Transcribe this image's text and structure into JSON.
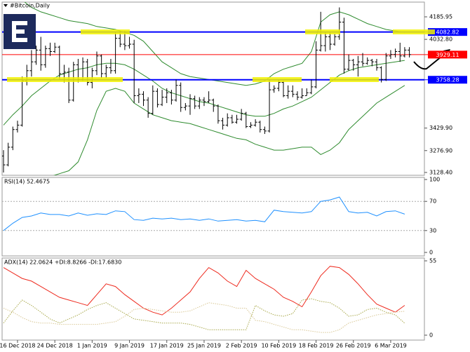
{
  "chart_data": [
    {
      "type": "candlestick",
      "title": "#Bitcoin,Daily",
      "color": "#000000",
      "x": [
        "13 Dec 2018",
        "14 Dec 2018",
        "15 Dec 2018",
        "16 Dec 2018",
        "17 Dec 2018",
        "18 Dec 2018",
        "19 Dec 2018",
        "20 Dec 2018",
        "21 Dec 2018",
        "22 Dec 2018",
        "23 Dec 2018",
        "24 Dec 2018",
        "25 Dec 2018",
        "26 Dec 2018",
        "27 Dec 2018",
        "28 Dec 2018",
        "29 Dec 2018",
        "30 Dec 2018",
        "31 Dec 2018",
        "1 Jan 2019",
        "2 Jan 2019",
        "3 Jan 2019",
        "4 Jan 2019",
        "5 Jan 2019",
        "6 Jan 2019",
        "7 Jan 2019",
        "8 Jan 2019",
        "9 Jan 2019",
        "10 Jan 2019",
        "11 Jan 2019",
        "12 Jan 2019",
        "13 Jan 2019",
        "14 Jan 2019",
        "15 Jan 2019",
        "16 Jan 2019",
        "17 Jan 2019",
        "18 Jan 2019",
        "19 Jan 2019",
        "20 Jan 2019",
        "21 Jan 2019",
        "22 Jan 2019",
        "23 Jan 2019",
        "24 Jan 2019",
        "25 Jan 2019",
        "26 Jan 2019",
        "27 Jan 2019",
        "28 Jan 2019",
        "29 Jan 2019",
        "30 Jan 2019",
        "31 Jan 2019",
        "1 Feb 2019",
        "2 Feb 2019",
        "3 Feb 2019",
        "4 Feb 2019",
        "5 Feb 2019",
        "6 Feb 2019",
        "7 Feb 2019",
        "8 Feb 2019",
        "9 Feb 2019",
        "10 Feb 2019",
        "11 Feb 2019",
        "12 Feb 2019",
        "13 Feb 2019",
        "14 Feb 2019",
        "15 Feb 2019",
        "16 Feb 2019",
        "17 Feb 2019",
        "18 Feb 2019",
        "19 Feb 2019",
        "20 Feb 2019",
        "21 Feb 2019",
        "22 Feb 2019",
        "23 Feb 2019",
        "24 Feb 2019",
        "25 Feb 2019",
        "26 Feb 2019",
        "27 Feb 2019",
        "28 Feb 2019",
        "1 Mar 2019",
        "2 Mar 2019",
        "3 Mar 2019",
        "4 Mar 2019",
        "5 Mar 2019",
        "6 Mar 2019",
        "7 Mar 2019",
        "8 Mar 2019",
        "9 Mar 2019",
        "10 Mar 2019"
      ],
      "open": [
        3240,
        3180,
        3300,
        3420,
        3450,
        3750,
        3820,
        3880,
        3960,
        3860,
        3970,
        3950,
        3980,
        3800,
        3810,
        3620,
        3860,
        3760,
        3880,
        3740,
        3820,
        3920,
        3800,
        3840,
        3820,
        4040,
        4000,
        3990,
        4000,
        3650,
        3660,
        3620,
        3530,
        3680,
        3590,
        3640,
        3670,
        3620,
        3720,
        3570,
        3580,
        3630,
        3580,
        3620,
        3610,
        3620,
        3580,
        3480,
        3450,
        3500,
        3470,
        3490,
        3530,
        3440,
        3450,
        3470,
        3420,
        3410,
        3690,
        3700,
        3740,
        3650,
        3680,
        3660,
        3640,
        3650,
        3670,
        3710,
        3960,
        3990,
        4050,
        4000,
        4050,
        4150,
        3830,
        3890,
        3860,
        3880,
        3870,
        3890,
        3880,
        3840,
        3760,
        3920,
        3930,
        3950,
        3920,
        3960
      ],
      "high": [
        3280,
        3330,
        3440,
        3480,
        3780,
        3860,
        3960,
        3990,
        4050,
        3990,
        4010,
        4010,
        3990,
        3860,
        3840,
        3880,
        3900,
        3910,
        3900,
        3840,
        3950,
        3930,
        3860,
        3900,
        4080,
        4090,
        4090,
        4050,
        4030,
        3700,
        3680,
        3640,
        3720,
        3700,
        3690,
        3700,
        3690,
        3760,
        3740,
        3600,
        3660,
        3650,
        3640,
        3640,
        3680,
        3630,
        3590,
        3500,
        3530,
        3520,
        3520,
        3560,
        3540,
        3470,
        3490,
        3480,
        3440,
        3760,
        3720,
        3760,
        3750,
        3720,
        3720,
        3680,
        3700,
        3700,
        3760,
        4020,
        4220,
        4080,
        4080,
        4070,
        4250,
        4180,
        3930,
        3900,
        3920,
        3940,
        3910,
        3900,
        3900,
        3850,
        3940,
        3960,
        3970,
        4010,
        3980,
        3980
      ],
      "low": [
        3128,
        3170,
        3280,
        3400,
        3440,
        3720,
        3780,
        3860,
        3820,
        3840,
        3920,
        3940,
        3760,
        3740,
        3600,
        3610,
        3740,
        3750,
        3720,
        3700,
        3790,
        3770,
        3770,
        3800,
        3800,
        3980,
        3960,
        3970,
        3600,
        3600,
        3580,
        3500,
        3520,
        3570,
        3580,
        3600,
        3590,
        3610,
        3540,
        3550,
        3520,
        3560,
        3560,
        3580,
        3600,
        3540,
        3460,
        3420,
        3440,
        3460,
        3460,
        3480,
        3430,
        3430,
        3440,
        3400,
        3390,
        3400,
        3670,
        3680,
        3640,
        3630,
        3640,
        3620,
        3630,
        3650,
        3660,
        3700,
        3950,
        3950,
        3960,
        3990,
        4030,
        3800,
        3820,
        3820,
        3780,
        3850,
        3860,
        3850,
        3820,
        3740,
        3750,
        3900,
        3910,
        3880,
        3910,
        3910
      ],
      "close": [
        3180,
        3300,
        3420,
        3450,
        3750,
        3820,
        3880,
        3960,
        3860,
        3970,
        3950,
        3980,
        3800,
        3810,
        3620,
        3860,
        3760,
        3880,
        3740,
        3820,
        3920,
        3800,
        3840,
        3820,
        4040,
        4000,
        3990,
        4000,
        3650,
        3660,
        3620,
        3530,
        3680,
        3590,
        3640,
        3670,
        3620,
        3720,
        3570,
        3580,
        3630,
        3580,
        3620,
        3610,
        3620,
        3580,
        3480,
        3450,
        3500,
        3470,
        3490,
        3530,
        3440,
        3450,
        3470,
        3420,
        3410,
        3690,
        3700,
        3740,
        3650,
        3680,
        3660,
        3640,
        3650,
        3670,
        3710,
        3960,
        3990,
        4050,
        4000,
        4050,
        4150,
        3830,
        3890,
        3860,
        3880,
        3870,
        3890,
        3880,
        3840,
        3760,
        3920,
        3930,
        3950,
        3920,
        3960,
        3929.11
      ],
      "bands": {
        "color": "#2e8b2e",
        "x": [
          "13 Dec 2018",
          "15 Dec 2018",
          "17 Dec 2018",
          "19 Dec 2018",
          "21 Dec 2018",
          "23 Dec 2018",
          "25 Dec 2018",
          "27 Dec 2018",
          "29 Dec 2018",
          "31 Dec 2018",
          "2 Jan 2019",
          "4 Jan 2019",
          "6 Jan 2019",
          "8 Jan 2019",
          "10 Jan 2019",
          "12 Jan 2019",
          "14 Jan 2019",
          "16 Jan 2019",
          "18 Jan 2019",
          "20 Jan 2019",
          "22 Jan 2019",
          "24 Jan 2019",
          "26 Jan 2019",
          "28 Jan 2019",
          "30 Jan 2019",
          "1 Feb 2019",
          "3 Feb 2019",
          "5 Feb 2019",
          "7 Feb 2019",
          "9 Feb 2019",
          "11 Feb 2019",
          "13 Feb 2019",
          "15 Feb 2019",
          "17 Feb 2019",
          "19 Feb 2019",
          "21 Feb 2019",
          "23 Feb 2019",
          "25 Feb 2019",
          "27 Feb 2019",
          "1 Mar 2019",
          "3 Mar 2019",
          "5 Mar 2019",
          "7 Mar 2019",
          "9 Mar 2019"
        ],
        "series": [
          {
            "values": [
              4400,
              4350,
              4300,
              4250,
              4220,
              4200,
              4180,
              4160,
              4150,
              4140,
              4120,
              4110,
              4100,
              4080,
              4060,
              4020,
              3950,
              3880,
              3840,
              3800,
              3780,
              3770,
              3760,
              3750,
              3740,
              3730,
              3720,
              3730,
              3750,
              3800,
              3830,
              3850,
              3870,
              3950,
              4150,
              4200,
              4220,
              4200,
              4170,
              4140,
              4120,
              4100,
              4090,
              4080
            ]
          },
          {
            "values": [
              3450,
              3520,
              3580,
              3650,
              3700,
              3750,
              3790,
              3810,
              3830,
              3840,
              3860,
              3870,
              3870,
              3860,
              3830,
              3790,
              3750,
              3700,
              3670,
              3650,
              3630,
              3610,
              3600,
              3580,
              3560,
              3540,
              3520,
              3510,
              3510,
              3530,
              3560,
              3580,
              3610,
              3640,
              3690,
              3740,
              3790,
              3820,
              3840,
              3850,
              3860,
              3870,
              3880,
              3890
            ]
          },
          {
            "values": [
              2500,
              2700,
              2860,
              3000,
              3050,
              3100,
              3120,
              3140,
              3200,
              3350,
              3550,
              3680,
              3700,
              3680,
              3600,
              3560,
              3520,
              3500,
              3480,
              3470,
              3460,
              3440,
              3420,
              3400,
              3380,
              3360,
              3350,
              3320,
              3300,
              3280,
              3280,
              3290,
              3300,
              3300,
              3250,
              3280,
              3330,
              3420,
              3480,
              3540,
              3600,
              3640,
              3680,
              3720
            ]
          }
        ]
      },
      "levels": [
        {
          "value": 4082.82,
          "color": "#0000ff"
        },
        {
          "value": 3929.11,
          "color": "#ff0000"
        },
        {
          "value": 3758.28,
          "color": "#0000ff"
        }
      ],
      "ylim": [
        3109,
        4286
      ],
      "yticks": [
        4185.95,
        {
          "value": 4032.8,
          "label": "4032.80"
        },
        {
          "value": 3429.9,
          "label": "3429.90"
        },
        {
          "value": 3276.9,
          "label": "3276.90"
        },
        {
          "value": 3128.4,
          "label": "3128.40"
        }
      ],
      "xticks": [
        "16 Dec 2018",
        "24 Dec 2018",
        "1 Jan 2019",
        "9 Jan 2019",
        "17 Jan 2019",
        "25 Jan 2019",
        "2 Feb 2019",
        "10 Feb 2019",
        "18 Feb 2019",
        "26 Feb 2019",
        "6 Mar 2019"
      ]
    },
    {
      "type": "line",
      "title": "RSI(14) 52.4675",
      "x": [
        "13 Dec 2018",
        "15 Dec 2018",
        "17 Dec 2018",
        "19 Dec 2018",
        "21 Dec 2018",
        "23 Dec 2018",
        "25 Dec 2018",
        "27 Dec 2018",
        "29 Dec 2018",
        "31 Dec 2018",
        "2 Jan 2019",
        "4 Jan 2019",
        "6 Jan 2019",
        "8 Jan 2019",
        "10 Jan 2019",
        "12 Jan 2019",
        "14 Jan 2019",
        "16 Jan 2019",
        "18 Jan 2019",
        "20 Jan 2019",
        "22 Jan 2019",
        "24 Jan 2019",
        "26 Jan 2019",
        "28 Jan 2019",
        "30 Jan 2019",
        "1 Feb 2019",
        "3 Feb 2019",
        "5 Feb 2019",
        "7 Feb 2019",
        "9 Feb 2019",
        "11 Feb 2019",
        "13 Feb 2019",
        "15 Feb 2019",
        "17 Feb 2019",
        "19 Feb 2019",
        "21 Feb 2019",
        "23 Feb 2019",
        "25 Feb 2019",
        "27 Feb 2019",
        "1 Mar 2019",
        "3 Mar 2019",
        "5 Mar 2019",
        "7 Mar 2019",
        "9 Mar 2019"
      ],
      "series": [
        {
          "color": "#1e90ff",
          "values": [
            30,
            40,
            48,
            50,
            54,
            52,
            52,
            50,
            54,
            51,
            53,
            52,
            57,
            56,
            45,
            44,
            47,
            46,
            47,
            45,
            46,
            44,
            46,
            43,
            44,
            45,
            43,
            44,
            42,
            58,
            56,
            55,
            54,
            56,
            70,
            72,
            76,
            56,
            54,
            55,
            50,
            56,
            57,
            52.4675
          ]
        }
      ],
      "levels": [
        70,
        30
      ],
      "ylim": [
        0,
        100
      ],
      "yticks": [
        100,
        70,
        30,
        0
      ]
    },
    {
      "type": "line",
      "title": "ADX(14) 22.0624 +DI:8.8266 -DI:17.6830",
      "x": [
        "13 Dec 2018",
        "15 Dec 2018",
        "17 Dec 2018",
        "19 Dec 2018",
        "21 Dec 2018",
        "23 Dec 2018",
        "25 Dec 2018",
        "27 Dec 2018",
        "29 Dec 2018",
        "31 Dec 2018",
        "2 Jan 2019",
        "4 Jan 2019",
        "6 Jan 2019",
        "8 Jan 2019",
        "10 Jan 2019",
        "12 Jan 2019",
        "14 Jan 2019",
        "16 Jan 2019",
        "18 Jan 2019",
        "20 Jan 2019",
        "22 Jan 2019",
        "24 Jan 2019",
        "26 Jan 2019",
        "28 Jan 2019",
        "30 Jan 2019",
        "1 Feb 2019",
        "3 Feb 2019",
        "5 Feb 2019",
        "7 Feb 2019",
        "9 Feb 2019",
        "11 Feb 2019",
        "13 Feb 2019",
        "15 Feb 2019",
        "17 Feb 2019",
        "19 Feb 2019",
        "21 Feb 2019",
        "23 Feb 2019",
        "25 Feb 2019",
        "27 Feb 2019",
        "1 Mar 2019",
        "3 Mar 2019",
        "5 Mar 2019",
        "7 Mar 2019",
        "9 Mar 2019"
      ],
      "series": [
        {
          "color": "#ee2a1e",
          "values": [
            50,
            46,
            42,
            40,
            36,
            32,
            28,
            26,
            24,
            22,
            30,
            38,
            36,
            30,
            25,
            20,
            17,
            15,
            20,
            26,
            32,
            42,
            50,
            46,
            40,
            36,
            48,
            42,
            38,
            34,
            28,
            25,
            21,
            32,
            44,
            51,
            50,
            45,
            38,
            30,
            23,
            20,
            17,
            22.0624
          ]
        },
        {
          "color": "#a8a84a",
          "dotted": true,
          "values": [
            9,
            18,
            26,
            22,
            17,
            12,
            9,
            12,
            15,
            19,
            22,
            24,
            20,
            16,
            12,
            11,
            10,
            9,
            9,
            9,
            8,
            6,
            4,
            4,
            4,
            4,
            4,
            22,
            18,
            15,
            14,
            16,
            26,
            27,
            25,
            24,
            20,
            14,
            15,
            19,
            20,
            17,
            15,
            8.8266
          ]
        },
        {
          "color": "#d9c896",
          "dotted": true,
          "values": [
            20,
            17,
            13,
            10,
            9,
            9,
            8,
            8,
            8,
            8,
            8,
            9,
            10,
            14,
            19,
            20,
            19,
            18,
            17,
            17,
            18,
            21,
            24,
            23,
            22,
            20,
            20,
            11,
            10,
            8,
            6,
            4,
            4,
            3,
            2,
            2,
            4,
            9,
            11,
            13,
            15,
            16,
            17,
            17.683
          ]
        }
      ],
      "ylim": [
        0,
        55
      ],
      "yticks": [
        55,
        0
      ]
    }
  ]
}
